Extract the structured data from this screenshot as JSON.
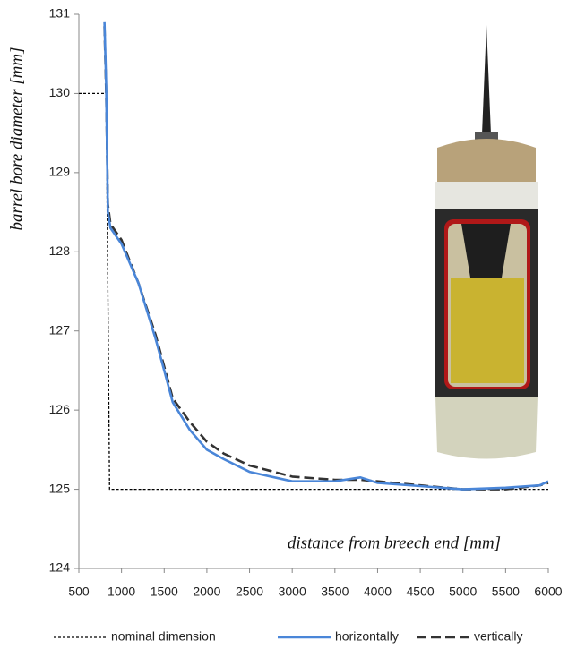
{
  "chart_data": {
    "type": "line",
    "x_label": "distance from breech end [mm]",
    "y_label": "barrel bore diameter [mm]",
    "xlim": [
      500,
      6000
    ],
    "xticks": [
      500,
      1000,
      1500,
      2000,
      2500,
      3000,
      3500,
      4000,
      4500,
      5000,
      5500,
      6000
    ],
    "ylim": [
      124,
      131
    ],
    "yticks": [
      124,
      125,
      126,
      127,
      128,
      129,
      130,
      131
    ],
    "series": [
      {
        "name": "nominal dimension",
        "color": "#000000",
        "dash": "dotted",
        "x": [
          500,
          820,
          860,
          6000
        ],
        "values": [
          130,
          130,
          125,
          125
        ]
      },
      {
        "name": "horizontally",
        "color": "#4a86d8",
        "dash": "solid",
        "x": [
          800,
          820,
          840,
          870,
          1000,
          1200,
          1400,
          1500,
          1600,
          1800,
          2000,
          2200,
          2500,
          3000,
          3500,
          3800,
          4000,
          4500,
          5000,
          5500,
          5900,
          6000
        ],
        "values": [
          130.9,
          130.1,
          128.5,
          128.3,
          128.1,
          127.6,
          126.9,
          126.5,
          126.1,
          125.75,
          125.5,
          125.38,
          125.22,
          125.1,
          125.1,
          125.15,
          125.08,
          125.04,
          125.0,
          125.02,
          125.05,
          125.1
        ]
      },
      {
        "name": "vertically",
        "color": "#333333",
        "dash": "dashed",
        "x": [
          800,
          820,
          840,
          870,
          1000,
          1200,
          1400,
          1500,
          1600,
          1800,
          2000,
          2200,
          2500,
          3000,
          3500,
          3800,
          4000,
          4500,
          5000,
          5500,
          5900,
          6000
        ],
        "values": [
          130.85,
          130.0,
          128.6,
          128.35,
          128.15,
          127.6,
          126.95,
          126.55,
          126.15,
          125.85,
          125.6,
          125.45,
          125.3,
          125.16,
          125.12,
          125.12,
          125.1,
          125.05,
          125.0,
          125.0,
          125.05,
          125.08
        ]
      }
    ]
  }
}
